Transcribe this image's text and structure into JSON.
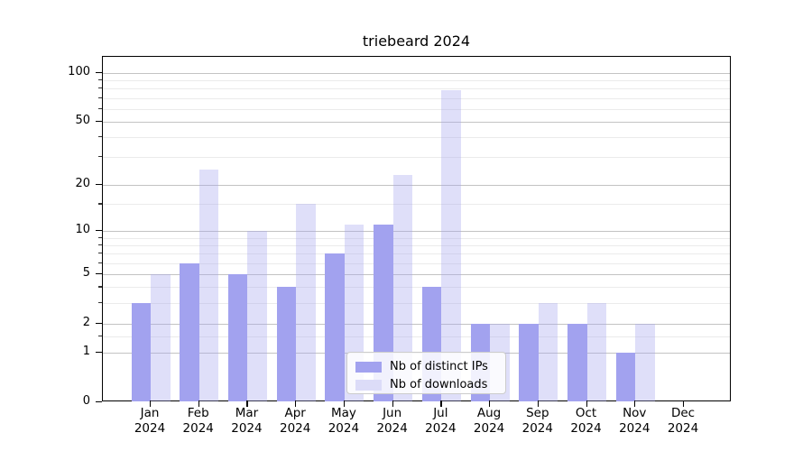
{
  "chart_data": {
    "type": "bar",
    "title": "triebeard 2024",
    "xlabel": "",
    "ylabel": "",
    "yscale": "log1p",
    "grid": true,
    "ylim": [
      0,
      126
    ],
    "yticks": [
      0,
      1,
      2,
      5,
      10,
      20,
      50,
      100
    ],
    "minor_yticks": [
      1.5,
      3,
      4,
      6,
      7,
      8,
      9,
      15,
      30,
      40,
      60,
      70,
      80,
      90
    ],
    "x_tick_months": [
      "Jan",
      "Feb",
      "Mar",
      "Apr",
      "May",
      "Jun",
      "Jul",
      "Aug",
      "Sep",
      "Oct",
      "Nov",
      "Dec"
    ],
    "x_tick_year": "2024",
    "legend_position": "bottom-center",
    "series": [
      {
        "name": "Nb of distinct IPs",
        "color": "#a2a2ef",
        "fill_opacity": 1,
        "legend_swatch": "#a2a2ef",
        "values": [
          3,
          6,
          5,
          4,
          7,
          11,
          4,
          2,
          2,
          2,
          1,
          0
        ]
      },
      {
        "name": "Nb of downloads",
        "color": "#a2a2ef",
        "fill_opacity": 0.35,
        "legend_swatch": "#dcdcf8",
        "values": [
          5,
          25,
          10,
          15,
          11,
          23,
          78,
          2,
          3,
          3,
          2,
          0
        ]
      }
    ]
  }
}
